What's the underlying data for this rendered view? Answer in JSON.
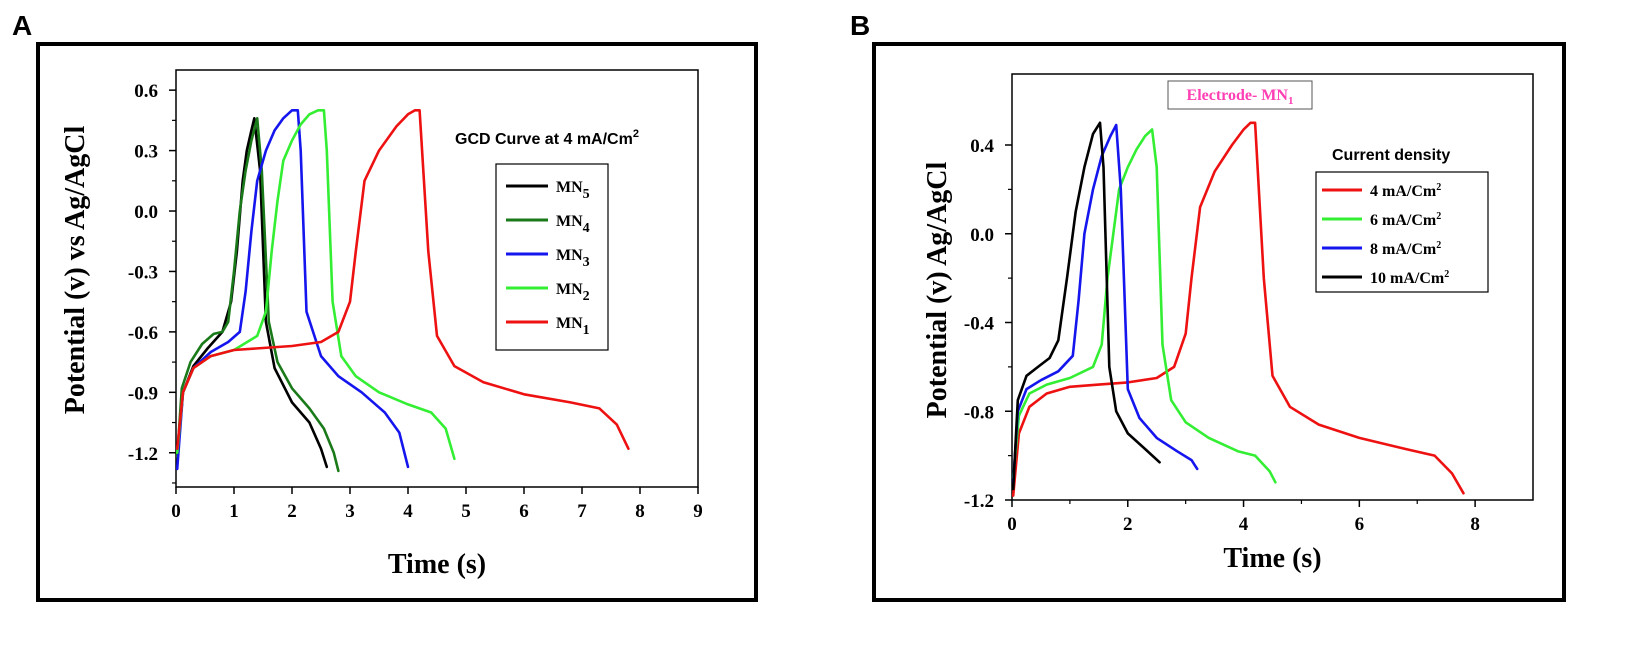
{
  "panels": [
    {
      "letter": "A",
      "chart_data": {
        "type": "line",
        "title": "",
        "xlabel": "Time (s)",
        "ylabel": "Potential (v) vs Ag/AgCl",
        "xlim": [
          0,
          9
        ],
        "ylim": [
          -1.37,
          0.7
        ],
        "xticks": [
          0,
          1,
          2,
          3,
          4,
          5,
          6,
          7,
          8,
          9
        ],
        "xtick_labels": [
          "0",
          "1",
          "2",
          "3",
          "4",
          "5",
          "6",
          "7",
          "8",
          "9"
        ],
        "yticks": [
          0.6,
          0.3,
          0.0,
          -0.3,
          -0.6,
          -0.9,
          -1.2
        ],
        "ytick_labels": [
          "0.6",
          "0.3",
          "0.0",
          "-0.3",
          "-0.6",
          "-0.9",
          "-1.2"
        ],
        "legend_title": "GCD Curve at 4 mA/Cm",
        "legend_title_sup": "2",
        "legend_position": "right",
        "series": [
          {
            "name": "MN",
            "sub": "5",
            "color": "#000000",
            "x": [
              0.02,
              0.12,
              0.3,
              0.55,
              0.8,
              0.95,
              1.05,
              1.15,
              1.22,
              1.3,
              1.35,
              1.45,
              1.55,
              1.7,
              2.0,
              2.3,
              2.5,
              2.6
            ],
            "y": [
              -1.22,
              -0.9,
              -0.77,
              -0.68,
              -0.6,
              -0.45,
              -0.2,
              0.15,
              0.3,
              0.4,
              0.46,
              0.2,
              -0.55,
              -0.78,
              -0.95,
              -1.05,
              -1.18,
              -1.27
            ]
          },
          {
            "name": "MN",
            "sub": "4",
            "color": "#1a7a1a",
            "x": [
              0.02,
              0.1,
              0.25,
              0.45,
              0.65,
              0.8,
              0.9,
              1.0,
              1.1,
              1.2,
              1.3,
              1.4,
              1.48,
              1.6,
              1.75,
              2.0,
              2.3,
              2.55,
              2.72,
              2.8
            ],
            "y": [
              -1.22,
              -0.88,
              -0.75,
              -0.66,
              -0.61,
              -0.6,
              -0.55,
              -0.3,
              0.0,
              0.2,
              0.35,
              0.46,
              0.2,
              -0.55,
              -0.75,
              -0.88,
              -0.98,
              -1.08,
              -1.2,
              -1.29
            ]
          },
          {
            "name": "MN",
            "sub": "3",
            "color": "#1515ee",
            "x": [
              0.02,
              0.12,
              0.3,
              0.6,
              0.9,
              1.1,
              1.2,
              1.3,
              1.4,
              1.55,
              1.7,
              1.85,
              2.0,
              2.1,
              2.15,
              2.25,
              2.5,
              2.8,
              3.2,
              3.6,
              3.85,
              4.0
            ],
            "y": [
              -1.28,
              -0.9,
              -0.78,
              -0.7,
              -0.65,
              -0.6,
              -0.4,
              -0.1,
              0.15,
              0.3,
              0.4,
              0.46,
              0.5,
              0.5,
              0.3,
              -0.5,
              -0.72,
              -0.82,
              -0.9,
              -1.0,
              -1.1,
              -1.27
            ]
          },
          {
            "name": "MN",
            "sub": "2",
            "color": "#33ee33",
            "x": [
              0.02,
              0.12,
              0.3,
              0.6,
              1.0,
              1.4,
              1.55,
              1.65,
              1.75,
              1.85,
              2.0,
              2.15,
              2.3,
              2.45,
              2.55,
              2.6,
              2.7,
              2.85,
              3.1,
              3.5,
              4.0,
              4.4,
              4.65,
              4.8
            ],
            "y": [
              -1.2,
              -0.9,
              -0.78,
              -0.72,
              -0.69,
              -0.62,
              -0.5,
              -0.2,
              0.05,
              0.25,
              0.35,
              0.43,
              0.48,
              0.5,
              0.5,
              0.3,
              -0.45,
              -0.72,
              -0.82,
              -0.9,
              -0.96,
              -1.0,
              -1.08,
              -1.23
            ]
          },
          {
            "name": "MN",
            "sub": "1",
            "color": "#ee1111",
            "x": [
              0.02,
              0.12,
              0.3,
              0.6,
              1.0,
              1.5,
              2.0,
              2.5,
              2.8,
              3.0,
              3.1,
              3.25,
              3.5,
              3.8,
              4.0,
              4.12,
              4.2,
              4.35,
              4.5,
              4.8,
              5.3,
              6.0,
              6.8,
              7.3,
              7.6,
              7.8
            ],
            "y": [
              -1.18,
              -0.9,
              -0.78,
              -0.72,
              -0.69,
              -0.68,
              -0.67,
              -0.65,
              -0.6,
              -0.45,
              -0.2,
              0.15,
              0.3,
              0.42,
              0.48,
              0.5,
              0.5,
              -0.2,
              -0.62,
              -0.77,
              -0.85,
              -0.91,
              -0.95,
              -0.98,
              -1.06,
              -1.18
            ]
          }
        ]
      }
    },
    {
      "letter": "B",
      "chart_data": {
        "type": "line",
        "title": "",
        "xlabel": "Time (s)",
        "ylabel": "Potential (v) Ag/AgCl",
        "xlim": [
          0,
          9
        ],
        "ylim": [
          -1.2,
          0.72
        ],
        "xticks": [
          0,
          2,
          4,
          6,
          8
        ],
        "xtick_labels": [
          "0",
          "2",
          "4",
          "6",
          "8"
        ],
        "yticks": [
          0.4,
          0.0,
          -0.4,
          -0.8,
          -1.2
        ],
        "ytick_labels": [
          "0.4",
          "0.0",
          "-0.4",
          "-0.8",
          "-1.2"
        ],
        "annotation": "Electrode- MN",
        "annotation_sub": "1",
        "legend_title": "Current density",
        "legend_position": "right",
        "series": [
          {
            "name": "4 mA/Cm",
            "sup": "2",
            "color": "#ee1111",
            "x": [
              0.02,
              0.12,
              0.3,
              0.6,
              1.0,
              1.5,
              2.0,
              2.5,
              2.8,
              3.0,
              3.1,
              3.25,
              3.5,
              3.8,
              4.0,
              4.12,
              4.2,
              4.35,
              4.5,
              4.8,
              5.3,
              6.0,
              6.8,
              7.3,
              7.6,
              7.8
            ],
            "y": [
              -1.18,
              -0.9,
              -0.78,
              -0.72,
              -0.69,
              -0.68,
              -0.67,
              -0.65,
              -0.6,
              -0.45,
              -0.2,
              0.12,
              0.28,
              0.4,
              0.47,
              0.5,
              0.5,
              -0.2,
              -0.64,
              -0.78,
              -0.86,
              -0.92,
              -0.97,
              -1.0,
              -1.08,
              -1.17
            ]
          },
          {
            "name": "6 mA/Cm",
            "sup": "2",
            "color": "#33ee33",
            "x": [
              0.02,
              0.12,
              0.3,
              0.6,
              1.0,
              1.4,
              1.55,
              1.65,
              1.75,
              1.85,
              2.0,
              2.15,
              2.3,
              2.42,
              2.5,
              2.6,
              2.75,
              3.0,
              3.4,
              3.9,
              4.2,
              4.45,
              4.55
            ],
            "y": [
              -1.1,
              -0.82,
              -0.72,
              -0.68,
              -0.65,
              -0.6,
              -0.5,
              -0.2,
              0.0,
              0.2,
              0.3,
              0.38,
              0.44,
              0.47,
              0.3,
              -0.5,
              -0.75,
              -0.85,
              -0.92,
              -0.98,
              -1.0,
              -1.07,
              -1.12
            ]
          },
          {
            "name": "8 mA/Cm",
            "sup": "2",
            "color": "#1515ee",
            "x": [
              0.02,
              0.1,
              0.25,
              0.5,
              0.8,
              1.05,
              1.15,
              1.25,
              1.4,
              1.55,
              1.7,
              1.8,
              1.88,
              2.0,
              2.2,
              2.5,
              2.85,
              3.1,
              3.2
            ],
            "y": [
              -1.12,
              -0.8,
              -0.7,
              -0.66,
              -0.62,
              -0.55,
              -0.3,
              0.0,
              0.2,
              0.35,
              0.44,
              0.49,
              0.2,
              -0.7,
              -0.83,
              -0.92,
              -0.98,
              -1.02,
              -1.06
            ]
          },
          {
            "name": "10 mA/Cm",
            "sup": "2",
            "color": "#000000",
            "x": [
              0.02,
              0.1,
              0.25,
              0.45,
              0.65,
              0.8,
              0.95,
              1.1,
              1.25,
              1.4,
              1.52,
              1.58,
              1.68,
              1.8,
              2.0,
              2.3,
              2.55
            ],
            "y": [
              -1.15,
              -0.75,
              -0.64,
              -0.6,
              -0.56,
              -0.48,
              -0.2,
              0.1,
              0.3,
              0.45,
              0.5,
              0.3,
              -0.6,
              -0.8,
              -0.9,
              -0.97,
              -1.03
            ]
          }
        ]
      }
    }
  ]
}
